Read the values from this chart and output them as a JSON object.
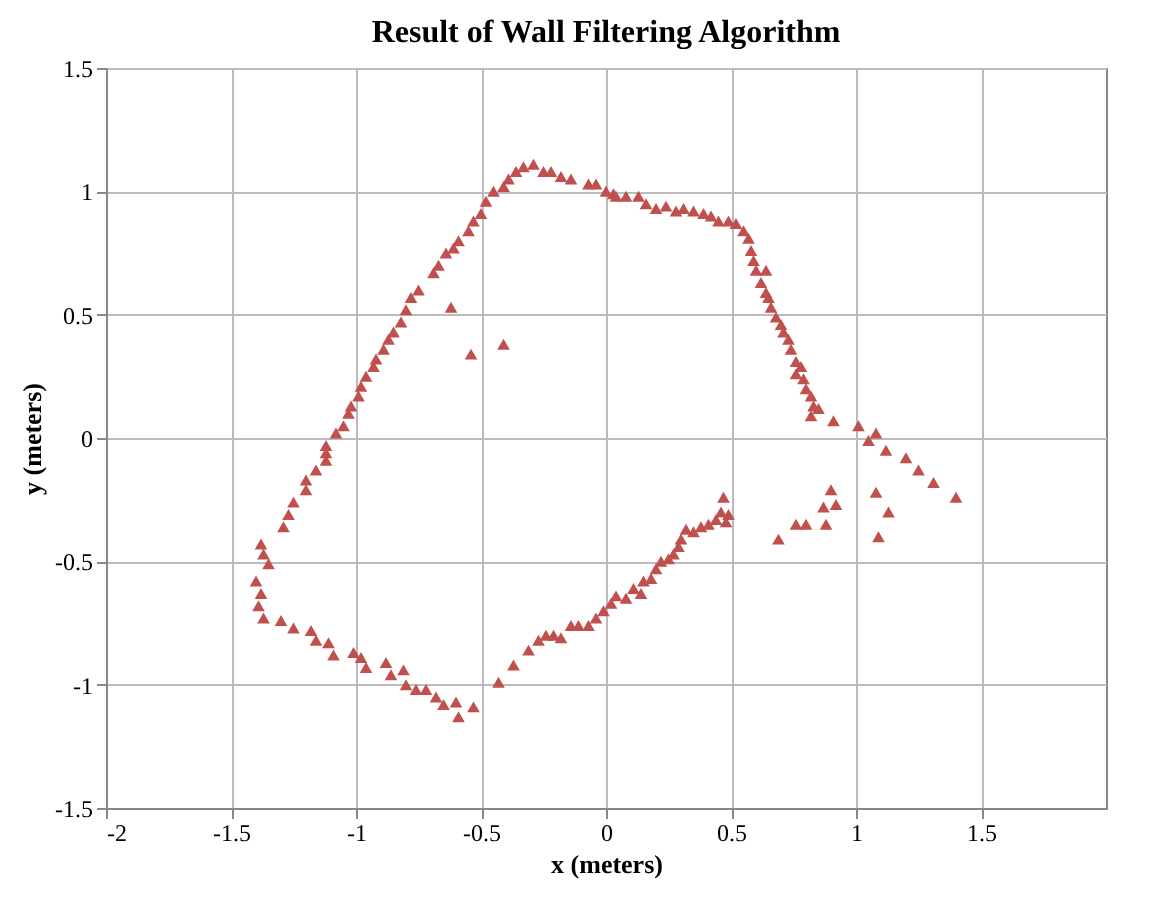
{
  "chart_data": {
    "type": "scatter",
    "title": "Result of Wall Filtering Algorithm",
    "xlabel": "x (meters)",
    "ylabel": "y (meters)",
    "xlim": [
      -2,
      2
    ],
    "ylim": [
      -1.5,
      1.5
    ],
    "xticks": [
      -2,
      -1.5,
      -1,
      -0.5,
      0,
      0.5,
      1,
      1.5
    ],
    "yticks": [
      -1.5,
      -1,
      -0.5,
      0,
      0.5,
      1,
      1.5
    ],
    "grid": true,
    "marker": "triangle",
    "series": [
      {
        "color": "#c0504d",
        "x": [
          -1.12,
          -1.08,
          -1.05,
          -1.03,
          -1.02,
          -0.99,
          -0.98,
          -0.96,
          -0.93,
          -0.92,
          -0.89,
          -0.87,
          -0.85,
          -0.82,
          -0.8,
          -0.78,
          -0.75,
          -0.69,
          -0.67,
          -0.64,
          -0.61,
          -0.59,
          -0.55,
          -0.53,
          -0.5,
          -0.48,
          -0.45,
          -0.41,
          -0.39,
          -0.36,
          -0.33,
          -0.29,
          -0.25,
          -0.22,
          -0.18,
          -0.14,
          -0.07,
          -0.04,
          0,
          0.03,
          0.08,
          -0.62,
          -0.54,
          -0.41,
          0.04,
          0.13,
          0.16,
          0.2,
          0.24,
          0.28,
          0.31,
          0.35,
          0.39,
          0.42,
          0.45,
          0.49,
          0.52,
          0.55,
          0.57,
          0.58,
          0.59,
          0.6,
          0.64,
          0.62,
          0.64,
          0.65,
          0.66,
          0.68,
          0.7,
          0.71,
          0.73,
          0.74,
          0.76,
          0.76,
          0.78,
          0.79,
          0.8,
          0.82,
          0.83,
          0.82,
          0.85,
          0.91,
          1.01,
          1.08,
          1.05,
          1.12,
          1.2,
          1.25,
          1.31,
          1.4,
          0.69,
          0.76,
          0.8,
          0.88,
          0.87,
          0.9,
          0.92,
          1.08,
          1.13,
          1.09,
          -0.43,
          -0.37,
          -0.31,
          -0.27,
          -0.24,
          -0.21,
          -0.18,
          -0.14,
          -0.11,
          -0.07,
          -0.04,
          -0.01,
          0.02,
          0.04,
          0.08,
          0.11,
          0.14,
          0.15,
          0.18,
          0.2,
          0.22,
          0.25,
          0.27,
          0.29,
          0.3,
          0.32,
          0.35,
          0.38,
          0.41,
          0.44,
          0.46,
          0.49,
          0.47,
          0.48,
          -1.12,
          -1.12,
          -1.16,
          -1.2,
          -1.2,
          -1.25,
          -1.27,
          -1.29,
          -1.38,
          -1.37,
          -1.35,
          -1.4,
          -1.38,
          -1.39,
          -1.37,
          -1.3,
          -1.25,
          -1.18,
          -1.16,
          -1.11,
          -1.09,
          -1.01,
          -0.98,
          -0.96,
          -0.88,
          -0.86,
          -0.81,
          -0.8,
          -0.76,
          -0.72,
          -0.68,
          -0.65,
          -0.6,
          -0.59,
          -0.53
        ],
        "values": [
          -0.03,
          0.02,
          0.05,
          0.1,
          0.13,
          0.17,
          0.21,
          0.25,
          0.29,
          0.32,
          0.36,
          0.4,
          0.43,
          0.47,
          0.52,
          0.57,
          0.6,
          0.67,
          0.7,
          0.75,
          0.77,
          0.8,
          0.84,
          0.88,
          0.91,
          0.96,
          1,
          1.02,
          1.05,
          1.08,
          1.1,
          1.11,
          1.08,
          1.08,
          1.06,
          1.05,
          1.03,
          1.03,
          1,
          0.99,
          0.98,
          0.53,
          0.34,
          0.38,
          0.98,
          0.98,
          0.95,
          0.93,
          0.94,
          0.92,
          0.93,
          0.92,
          0.91,
          0.9,
          0.88,
          0.88,
          0.87,
          0.84,
          0.81,
          0.76,
          0.72,
          0.68,
          0.68,
          0.63,
          0.59,
          0.57,
          0.53,
          0.49,
          0.46,
          0.43,
          0.4,
          0.36,
          0.31,
          0.26,
          0.29,
          0.24,
          0.2,
          0.17,
          0.13,
          0.09,
          0.12,
          0.07,
          0.05,
          0.02,
          -0.01,
          -0.05,
          -0.08,
          -0.13,
          -0.18,
          -0.24,
          -0.41,
          -0.35,
          -0.35,
          -0.35,
          -0.28,
          -0.21,
          -0.27,
          -0.22,
          -0.3,
          -0.4,
          -0.99,
          -0.92,
          -0.86,
          -0.82,
          -0.8,
          -0.8,
          -0.81,
          -0.76,
          -0.76,
          -0.76,
          -0.73,
          -0.7,
          -0.67,
          -0.64,
          -0.65,
          -0.61,
          -0.63,
          -0.58,
          -0.57,
          -0.53,
          -0.5,
          -0.49,
          -0.47,
          -0.44,
          -0.41,
          -0.37,
          -0.38,
          -0.36,
          -0.35,
          -0.33,
          -0.3,
          -0.31,
          -0.24,
          -0.34,
          -0.06,
          -0.09,
          -0.13,
          -0.17,
          -0.21,
          -0.26,
          -0.31,
          -0.36,
          -0.43,
          -0.47,
          -0.51,
          -0.58,
          -0.63,
          -0.68,
          -0.73,
          -0.74,
          -0.77,
          -0.78,
          -0.82,
          -0.83,
          -0.88,
          -0.87,
          -0.89,
          -0.93,
          -0.91,
          -0.96,
          -0.94,
          -1,
          -1.02,
          -1.02,
          -1.05,
          -1.08,
          -1.07,
          -1.13,
          -1.09
        ]
      }
    ]
  }
}
